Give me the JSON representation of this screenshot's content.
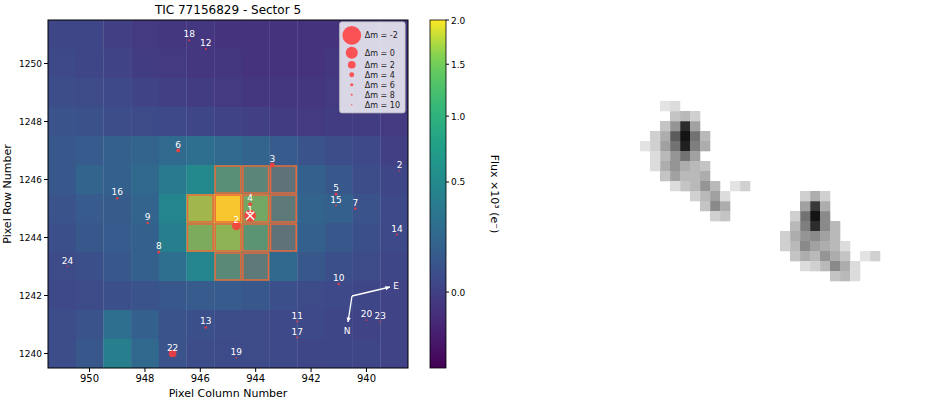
{
  "chart_data": [
    {
      "type": "heatmap",
      "title": "TIC 77156829 - Sector 5",
      "x_label": "Pixel Column Number",
      "y_label": "Pixel Row Number",
      "xlim": [
        951.5,
        938.5
      ],
      "ylim": [
        1239.5,
        1251.5
      ],
      "xticks": [
        950,
        948,
        946,
        944,
        942,
        940
      ],
      "yticks": [
        1240,
        1242,
        1244,
        1246,
        1248,
        1250
      ],
      "columns": [
        951,
        950,
        949,
        948,
        947,
        946,
        945,
        944,
        943,
        942,
        941,
        940,
        939
      ],
      "rows": [
        1251,
        1250,
        1249,
        1248,
        1247,
        1246,
        1245,
        1244,
        1243,
        1242,
        1241,
        1240
      ],
      "cells": [
        [
          0.02,
          0.02,
          0.0,
          -0.02,
          -0.03,
          -0.03,
          -0.04,
          -0.04,
          -0.04,
          -0.04,
          -0.04,
          -0.03,
          -0.03
        ],
        [
          0.03,
          0.02,
          0.01,
          -0.01,
          -0.02,
          -0.03,
          -0.03,
          -0.04,
          -0.04,
          -0.04,
          -0.03,
          -0.03,
          -0.03
        ],
        [
          0.05,
          0.04,
          0.03,
          0.01,
          0.0,
          -0.01,
          -0.02,
          -0.03,
          -0.03,
          -0.03,
          -0.02,
          -0.02,
          -0.02
        ],
        [
          0.08,
          0.07,
          0.05,
          0.04,
          0.03,
          0.02,
          0.01,
          0.0,
          -0.01,
          -0.02,
          -0.01,
          -0.01,
          -0.02
        ],
        [
          0.1,
          0.12,
          0.15,
          0.18,
          0.22,
          0.25,
          0.22,
          0.18,
          0.12,
          0.08,
          0.05,
          0.03,
          0.0
        ],
        [
          0.1,
          0.18,
          0.15,
          0.2,
          0.35,
          0.5,
          0.7,
          0.55,
          0.3,
          0.15,
          0.1,
          0.05,
          0.02
        ],
        [
          0.08,
          0.12,
          0.13,
          0.18,
          0.45,
          1.6,
          2.0,
          1.2,
          0.4,
          0.18,
          0.15,
          0.08,
          0.03
        ],
        [
          0.06,
          0.1,
          0.12,
          0.15,
          0.4,
          1.3,
          1.5,
          0.8,
          0.3,
          0.15,
          0.1,
          0.06,
          0.03
        ],
        [
          0.04,
          0.06,
          0.1,
          0.15,
          0.25,
          0.45,
          0.6,
          0.4,
          0.2,
          0.1,
          0.06,
          0.04,
          0.02
        ],
        [
          0.03,
          0.04,
          0.06,
          0.08,
          0.1,
          0.12,
          0.12,
          0.1,
          0.06,
          0.04,
          0.03,
          0.02,
          0.01
        ],
        [
          0.05,
          0.08,
          0.25,
          0.15,
          0.08,
          0.06,
          0.05,
          0.04,
          0.03,
          0.03,
          0.02,
          0.01,
          0.01
        ],
        [
          0.05,
          0.1,
          0.4,
          0.2,
          0.08,
          0.05,
          0.04,
          0.04,
          0.03,
          0.02,
          0.02,
          0.02,
          0.01
        ]
      ],
      "colorbar": {
        "label": "Flux ×10³ (e⁻)",
        "range": [
          -0.1,
          2.0
        ],
        "ticks": [
          {
            "value": 0,
            "label": "0.0"
          },
          {
            "value": 0.5,
            "label": "0.5"
          },
          {
            "value": 1,
            "label": "1.0"
          },
          {
            "value": 1.5,
            "label": "1.5"
          },
          {
            "value": 2,
            "label": "2.0"
          }
        ]
      },
      "aperture": [
        [
          945,
          1246
        ],
        [
          944,
          1246
        ],
        [
          943,
          1246
        ],
        [
          946,
          1245
        ],
        [
          945,
          1245
        ],
        [
          944,
          1245
        ],
        [
          943,
          1245
        ],
        [
          946,
          1244
        ],
        [
          945,
          1244
        ],
        [
          944,
          1244
        ],
        [
          943,
          1244
        ],
        [
          945,
          1243
        ],
        [
          944,
          1243
        ]
      ],
      "stars": [
        {
          "label": "1",
          "column": 944.2,
          "row": 1244.75,
          "dmag": 0
        },
        {
          "label": "4",
          "column": 944.2,
          "row": 1245.15,
          "dmag": 5
        },
        {
          "label": "2",
          "column": 944.7,
          "row": 1244.4,
          "dmag": 1.5
        },
        {
          "label": "3",
          "column": 943.4,
          "row": 1246.5,
          "dmag": 4
        },
        {
          "label": "5",
          "column": 941.1,
          "row": 1245.5,
          "dmag": 6
        },
        {
          "label": "15",
          "column": 941.1,
          "row": 1245.1,
          "dmag": 8
        },
        {
          "label": "6",
          "column": 946.8,
          "row": 1247.0,
          "dmag": 5
        },
        {
          "label": "7",
          "column": 940.4,
          "row": 1245.0,
          "dmag": 7
        },
        {
          "label": "8",
          "column": 947.5,
          "row": 1243.5,
          "dmag": 6
        },
        {
          "label": "9",
          "column": 947.9,
          "row": 1244.5,
          "dmag": 7
        },
        {
          "label": "10",
          "column": 941.0,
          "row": 1242.4,
          "dmag": 7
        },
        {
          "label": "11",
          "column": 942.5,
          "row": 1241.1,
          "dmag": 8
        },
        {
          "label": "12",
          "column": 945.8,
          "row": 1250.5,
          "dmag": 8
        },
        {
          "label": "13",
          "column": 945.8,
          "row": 1240.9,
          "dmag": 7
        },
        {
          "label": "14",
          "column": 938.9,
          "row": 1244.1,
          "dmag": 8
        },
        {
          "label": "16",
          "column": 949.0,
          "row": 1245.35,
          "dmag": 7
        },
        {
          "label": "17",
          "column": 942.5,
          "row": 1240.55,
          "dmag": 8
        },
        {
          "label": "18",
          "column": 946.4,
          "row": 1250.8,
          "dmag": 8
        },
        {
          "label": "19",
          "column": 944.7,
          "row": 1239.85,
          "dmag": 9
        },
        {
          "label": "20",
          "column": 940.0,
          "row": 1241.15,
          "dmag": 9
        },
        {
          "label": "22",
          "column": 947.0,
          "row": 1240.0,
          "dmag": 2
        },
        {
          "label": "23",
          "column": 939.5,
          "row": 1241.1,
          "dmag": 9
        },
        {
          "label": "24",
          "column": 950.8,
          "row": 1243.0,
          "dmag": 9
        },
        {
          "label": "2",
          "column": 938.8,
          "row": 1246.3,
          "dmag": 9
        }
      ],
      "size_legend": [
        {
          "label": "Δm = -2",
          "dmag": -2
        },
        {
          "label": "Δm = 0",
          "dmag": 0
        },
        {
          "label": "Δm = 2",
          "dmag": 2
        },
        {
          "label": "Δm = 4",
          "dmag": 4
        },
        {
          "label": "Δm = 6",
          "dmag": 6
        },
        {
          "label": "Δm = 8",
          "dmag": 8
        },
        {
          "label": "Δm = 10",
          "dmag": 10
        }
      ],
      "legend": "upper right",
      "compass": {
        "north": "N",
        "east": "E"
      }
    },
    {
      "type": "image",
      "columns": 41,
      "rows": 40,
      "pixels": [
        [
          15,
          12,
          0.9
        ],
        [
          15,
          13,
          1.0
        ],
        [
          15,
          14,
          0.95
        ],
        [
          14,
          13,
          0.7
        ],
        [
          16,
          13,
          0.6
        ],
        [
          14,
          14,
          0.6
        ],
        [
          16,
          14,
          0.55
        ],
        [
          15,
          15,
          0.6
        ],
        [
          14,
          12,
          0.45
        ],
        [
          16,
          12,
          0.4
        ],
        [
          13,
          13,
          0.35
        ],
        [
          13,
          14,
          0.4
        ],
        [
          14,
          15,
          0.45
        ],
        [
          16,
          15,
          0.4
        ],
        [
          15,
          11,
          0.3
        ],
        [
          14,
          11,
          0.25
        ],
        [
          13,
          12,
          0.25
        ],
        [
          17,
          13,
          0.3
        ],
        [
          17,
          14,
          0.35
        ],
        [
          13,
          15,
          0.3
        ],
        [
          12,
          14,
          0.2
        ],
        [
          12,
          13,
          0.2
        ],
        [
          13,
          16,
          0.35
        ],
        [
          14,
          16,
          0.45
        ],
        [
          15,
          16,
          0.35
        ],
        [
          16,
          16,
          0.3
        ],
        [
          17,
          16,
          0.25
        ],
        [
          14,
          17,
          0.4
        ],
        [
          15,
          17,
          0.3
        ],
        [
          13,
          17,
          0.25
        ],
        [
          16,
          17,
          0.3
        ],
        [
          17,
          17,
          0.35
        ],
        [
          17,
          18,
          0.45
        ],
        [
          16,
          18,
          0.3
        ],
        [
          15,
          18,
          0.25
        ],
        [
          18,
          18,
          0.3
        ],
        [
          18,
          19,
          0.4
        ],
        [
          17,
          19,
          0.3
        ],
        [
          16,
          19,
          0.2
        ],
        [
          18,
          20,
          0.5
        ],
        [
          19,
          20,
          0.35
        ],
        [
          17,
          20,
          0.25
        ],
        [
          19,
          21,
          0.25
        ],
        [
          18,
          21,
          0.2
        ],
        [
          12,
          15,
          0.15
        ],
        [
          11,
          14,
          0.12
        ],
        [
          12,
          16,
          0.15
        ],
        [
          14,
          18,
          0.15
        ],
        [
          13,
          10,
          0.12
        ],
        [
          14,
          10,
          0.15
        ],
        [
          16,
          11,
          0.2
        ],
        [
          19,
          19,
          0.15
        ],
        [
          21,
          18,
          0.2
        ],
        [
          20,
          18,
          0.12
        ],
        [
          28,
          20,
          0.85
        ],
        [
          28,
          21,
          1.0
        ],
        [
          28,
          22,
          0.9
        ],
        [
          27,
          21,
          0.6
        ],
        [
          29,
          21,
          0.5
        ],
        [
          27,
          22,
          0.55
        ],
        [
          29,
          22,
          0.5
        ],
        [
          28,
          19,
          0.35
        ],
        [
          27,
          20,
          0.4
        ],
        [
          29,
          20,
          0.35
        ],
        [
          28,
          23,
          0.5
        ],
        [
          27,
          23,
          0.45
        ],
        [
          29,
          23,
          0.4
        ],
        [
          26,
          22,
          0.3
        ],
        [
          26,
          23,
          0.35
        ],
        [
          30,
          22,
          0.3
        ],
        [
          30,
          23,
          0.3
        ],
        [
          26,
          24,
          0.3
        ],
        [
          27,
          24,
          0.5
        ],
        [
          28,
          24,
          0.4
        ],
        [
          29,
          24,
          0.35
        ],
        [
          30,
          24,
          0.3
        ],
        [
          27,
          25,
          0.35
        ],
        [
          28,
          25,
          0.3
        ],
        [
          29,
          25,
          0.45
        ],
        [
          30,
          25,
          0.35
        ],
        [
          31,
          25,
          0.25
        ],
        [
          29,
          26,
          0.3
        ],
        [
          30,
          26,
          0.5
        ],
        [
          31,
          26,
          0.35
        ],
        [
          31,
          27,
          0.3
        ],
        [
          30,
          27,
          0.25
        ],
        [
          25,
          23,
          0.2
        ],
        [
          25,
          24,
          0.2
        ],
        [
          26,
          25,
          0.25
        ],
        [
          26,
          21,
          0.2
        ],
        [
          31,
          24,
          0.15
        ],
        [
          32,
          26,
          0.15
        ],
        [
          29,
          19,
          0.2
        ],
        [
          27,
          19,
          0.2
        ],
        [
          32,
          27,
          0.15
        ],
        [
          34,
          25,
          0.2
        ],
        [
          33,
          25,
          0.12
        ],
        [
          28,
          26,
          0.2
        ],
        [
          27,
          26,
          0.15
        ]
      ]
    }
  ]
}
